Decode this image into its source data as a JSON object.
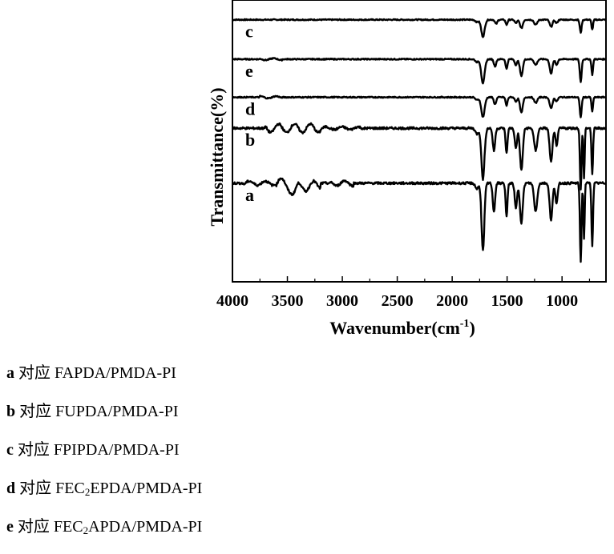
{
  "chart_data": {
    "type": "line",
    "xlabel": "Wavenumber(cm",
    "xlabel_sup": "-1",
    "xlabel_close": ")",
    "ylabel": "Transmittance(%)",
    "xlim": [
      4000,
      600
    ],
    "x_reversed": true,
    "x_ticks": [
      4000,
      3500,
      3000,
      2500,
      2000,
      1500,
      1000
    ],
    "x_tick_labels": [
      "4000",
      "3500",
      "3000",
      "2500",
      "2000",
      "1500",
      "1000"
    ],
    "ylim": [
      0,
      1
    ],
    "y_ticks_shown": false,
    "grid": false,
    "legend": "none",
    "series": [
      {
        "name": "c",
        "offset": 0.93,
        "noise": 0.002,
        "wiggles": [],
        "bands": [
          [
            1775,
            0.008,
            20
          ],
          [
            1720,
            0.06,
            22
          ],
          [
            1600,
            0.015,
            15
          ],
          [
            1505,
            0.018,
            12
          ],
          [
            1420,
            0.012,
            15
          ],
          [
            1370,
            0.03,
            18
          ],
          [
            1240,
            0.018,
            20
          ],
          [
            1100,
            0.025,
            18
          ],
          [
            1050,
            0.012,
            15
          ],
          [
            830,
            0.045,
            12
          ],
          [
            725,
            0.035,
            10
          ]
        ]
      },
      {
        "name": "e",
        "offset": 0.79,
        "noise": 0.002,
        "wiggles": [
          [
            3750,
            3550,
            0.005
          ]
        ],
        "bands": [
          [
            1775,
            0.01,
            20
          ],
          [
            1720,
            0.085,
            22
          ],
          [
            1610,
            0.025,
            15
          ],
          [
            1505,
            0.035,
            12
          ],
          [
            1420,
            0.02,
            15
          ],
          [
            1370,
            0.06,
            18
          ],
          [
            1240,
            0.02,
            20
          ],
          [
            1100,
            0.05,
            18
          ],
          [
            1050,
            0.02,
            15
          ],
          [
            830,
            0.08,
            12
          ],
          [
            725,
            0.055,
            10
          ]
        ]
      },
      {
        "name": "d",
        "offset": 0.655,
        "noise": 0.002,
        "wiggles": [
          [
            3750,
            3550,
            0.006
          ]
        ],
        "bands": [
          [
            1775,
            0.01,
            20
          ],
          [
            1720,
            0.07,
            22
          ],
          [
            1610,
            0.025,
            15
          ],
          [
            1505,
            0.03,
            12
          ],
          [
            1420,
            0.015,
            15
          ],
          [
            1370,
            0.055,
            18
          ],
          [
            1240,
            0.02,
            20
          ],
          [
            1100,
            0.04,
            18
          ],
          [
            1050,
            0.015,
            15
          ],
          [
            830,
            0.07,
            12
          ],
          [
            725,
            0.05,
            10
          ]
        ]
      },
      {
        "name": "b",
        "offset": 0.545,
        "noise": 0.004,
        "wiggles": [
          [
            3700,
            3200,
            0.025
          ],
          [
            3200,
            2800,
            0.008
          ]
        ],
        "bands": [
          [
            1775,
            0.02,
            20
          ],
          [
            1720,
            0.18,
            20
          ],
          [
            1620,
            0.08,
            15
          ],
          [
            1505,
            0.09,
            12
          ],
          [
            1420,
            0.07,
            15
          ],
          [
            1370,
            0.15,
            18
          ],
          [
            1240,
            0.08,
            20
          ],
          [
            1100,
            0.12,
            18
          ],
          [
            1050,
            0.06,
            15
          ],
          [
            830,
            0.22,
            10
          ],
          [
            800,
            0.18,
            8
          ],
          [
            725,
            0.16,
            10
          ]
        ]
      },
      {
        "name": "a",
        "offset": 0.35,
        "noise": 0.004,
        "wiggles": [
          [
            3900,
            3600,
            0.012
          ],
          [
            3600,
            3200,
            0.03
          ],
          [
            3100,
            2900,
            0.015
          ]
        ],
        "bands": [
          [
            3440,
            0.04,
            40
          ],
          [
            3300,
            0.015,
            60
          ],
          [
            1775,
            0.02,
            20
          ],
          [
            1720,
            0.24,
            18
          ],
          [
            1620,
            0.1,
            15
          ],
          [
            1505,
            0.12,
            12
          ],
          [
            1420,
            0.09,
            15
          ],
          [
            1370,
            0.14,
            18
          ],
          [
            1240,
            0.1,
            20
          ],
          [
            1100,
            0.13,
            18
          ],
          [
            1050,
            0.07,
            15
          ],
          [
            830,
            0.28,
            10
          ],
          [
            800,
            0.2,
            8
          ],
          [
            725,
            0.22,
            10
          ]
        ]
      }
    ],
    "series_labels": [
      "c",
      "e",
      "d",
      "b",
      "a"
    ]
  },
  "captions": [
    {
      "key": "a",
      "text": " 对应 FAPDA/PMDA-PI",
      "pre": "",
      "sub": "",
      "post": ""
    },
    {
      "key": "b",
      "text": " 对应 FUPDA/PMDA-PI",
      "pre": "",
      "sub": "",
      "post": ""
    },
    {
      "key": "c",
      "text": " 对应 FPIPDA/PMDA-PI",
      "pre": "",
      "sub": "",
      "post": ""
    },
    {
      "key": "d",
      "text": "",
      "pre": " 对应 FEC",
      "sub": "2",
      "post": "EPDA/PMDA-PI"
    },
    {
      "key": "e",
      "text": "",
      "pre": " 对应 FEC",
      "sub": "2",
      "post": "APDA/PMDA-PI"
    }
  ]
}
